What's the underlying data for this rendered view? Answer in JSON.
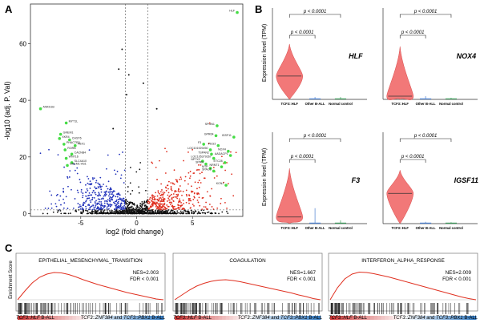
{
  "panel_letters": {
    "a": "A",
    "b": "B",
    "c": "C"
  },
  "colors": {
    "up": "#e03020",
    "down": "#2233bb",
    "ns": "#111111",
    "highlight": "#44dd44",
    "violin": "#f06060",
    "gsea_line": "#e03020",
    "rank_pos": "#d03030",
    "rank_neg": "#3070c0"
  },
  "chart_data": [
    {
      "id": "volcano",
      "type": "scatter",
      "title": "",
      "xlabel": "log2 (fold change)",
      "ylabel": "-log10 (adj. P. Val)",
      "xlim": [
        -9.5,
        9.5
      ],
      "ylim": [
        -1,
        74
      ],
      "xticks": [
        -5,
        0,
        5
      ],
      "yticks": [
        0,
        20,
        40,
        60
      ],
      "thresholds": {
        "x": [
          -1,
          1
        ],
        "y": 1.3
      },
      "highlight_points": [
        {
          "label": "HLF",
          "x": 9.0,
          "y": 71
        },
        {
          "label": "ANKS1B",
          "x": -8.6,
          "y": 37
        },
        {
          "label": "MYT1L",
          "x": -6.3,
          "y": 32
        },
        {
          "label": "GREM1",
          "x": -6.8,
          "y": 28
        },
        {
          "label": "XKR4",
          "x": -6.9,
          "y": 26.5
        },
        {
          "label": "CHST6",
          "x": -6.0,
          "y": 26
        },
        {
          "label": "PHACTR3",
          "x": -6.5,
          "y": 24.5
        },
        {
          "label": "PBX1",
          "x": -5.5,
          "y": 24
        },
        {
          "label": "RORB",
          "x": -6.4,
          "y": 22.5
        },
        {
          "label": "CACNB4",
          "x": -5.8,
          "y": 21
        },
        {
          "label": "WNT16",
          "x": -6.3,
          "y": 19.5
        },
        {
          "label": "SLC4A10",
          "x": -5.8,
          "y": 18
        },
        {
          "label": "GREM1-AS1",
          "x": -6.2,
          "y": 17
        },
        {
          "label": "SPON1",
          "x": 7.2,
          "y": 31
        },
        {
          "label": "GPR64",
          "x": 7.1,
          "y": 27.5
        },
        {
          "label": "IGSF11",
          "x": 8.7,
          "y": 27
        },
        {
          "label": "F3",
          "x": 6.0,
          "y": 24.5
        },
        {
          "label": "PEG3",
          "x": 7.3,
          "y": 24
        },
        {
          "label": "LOC101929250",
          "x": 6.6,
          "y": 22.5
        },
        {
          "label": "NOX4",
          "x": 8.2,
          "y": 22
        },
        {
          "label": "TSPAN2",
          "x": 6.7,
          "y": 21
        },
        {
          "label": "AADACP1",
          "x": 8.4,
          "y": 20.5
        },
        {
          "label": "LOC105379267",
          "x": 6.9,
          "y": 19.5
        },
        {
          "label": "NPTX2",
          "x": 5.9,
          "y": 18.5
        },
        {
          "label": "ETC28",
          "x": 7.9,
          "y": 18
        },
        {
          "label": "SPRN",
          "x": 6.2,
          "y": 17.5
        },
        {
          "label": "NRNT1",
          "x": 7.6,
          "y": 16.5
        },
        {
          "label": "MTP",
          "x": 6.6,
          "y": 16
        },
        {
          "label": "SPAG6",
          "x": 6.9,
          "y": 15
        },
        {
          "label": "KCNJ",
          "x": 8.0,
          "y": 10
        }
      ]
    },
    {
      "id": "violin-hlf",
      "type": "violin",
      "gene": "HLF",
      "ylabel": "Expression level (TPM)",
      "categories": [
        "TCF3::HLF",
        "Other B-ALL",
        "Normal control"
      ],
      "medians": [
        80,
        2,
        3
      ],
      "max": [
        190,
        8,
        8
      ],
      "ylim": [
        0,
        220
      ],
      "comparisons": [
        {
          "pair": [
            1,
            2
          ],
          "label": "p < 0.0001"
        },
        {
          "pair": [
            1,
            3
          ],
          "label": "p < 0.0001"
        }
      ]
    },
    {
      "id": "violin-nox4",
      "type": "violin",
      "gene": "NOX4",
      "ylabel": "",
      "categories": [
        "TCF3::HLF",
        "Other B-ALL",
        "Normal control"
      ],
      "medians": [
        2,
        0.3,
        0.2
      ],
      "max": [
        33,
        2,
        1
      ],
      "ylim": [
        0,
        40
      ],
      "comparisons": [
        {
          "pair": [
            1,
            2
          ],
          "label": "p < 0.0001"
        },
        {
          "pair": [
            1,
            3
          ],
          "label": "p < 0.0001"
        }
      ]
    },
    {
      "id": "violin-f3",
      "type": "violin",
      "gene": "F3",
      "ylabel": "Expression level (TPM)",
      "categories": [
        "TCF3::HLF",
        "Other B-ALL",
        "Normal control"
      ],
      "medians": [
        30,
        3,
        4
      ],
      "max": [
        250,
        70,
        15
      ],
      "ylim": [
        0,
        290
      ],
      "comparisons": [
        {
          "pair": [
            1,
            2
          ],
          "label": "p < 0.0001"
        },
        {
          "pair": [
            1,
            3
          ],
          "label": "p < 0.0001"
        }
      ]
    },
    {
      "id": "violin-igsf11",
      "type": "violin",
      "gene": "IGSF11",
      "ylabel": "",
      "categories": [
        "TCF3::HLF",
        "Other B-ALL",
        "Normal control"
      ],
      "medians": [
        17,
        0.2,
        0.2
      ],
      "max": [
        30,
        1,
        0.8
      ],
      "ylim": [
        0,
        36
      ],
      "comparisons": [
        {
          "pair": [
            1,
            2
          ],
          "label": "p < 0.0001"
        },
        {
          "pair": [
            1,
            3
          ],
          "label": "p < 0.0001"
        }
      ]
    },
    {
      "id": "gsea-emt",
      "type": "line",
      "title": "EPITHELIAL_MESENCHYMAL_TRANSITION",
      "ylabel": "Enrichment Score",
      "nes_label": "NES=2.003",
      "fdr_label": "FDR < 0.001",
      "x_left_label": "B-ALL",
      "x_left_prefix": "TCF3::HLF",
      "x_right_prefix": "TCF3::ZNF384",
      "x_right_mid": "and",
      "x_right_prefix2": "TCF3::PBX1",
      "x_right_suffix": "B-ALL",
      "running_es": [
        0,
        0.22,
        0.42,
        0.56,
        0.64,
        0.68,
        0.67,
        0.63,
        0.57,
        0.5,
        0.44,
        0.38,
        0.33,
        0.28,
        0.23,
        0.18,
        0.14,
        0.1,
        0.06,
        0.02,
        0
      ]
    },
    {
      "id": "gsea-coag",
      "type": "line",
      "title": "COAGULATION",
      "ylabel": "",
      "nes_label": "NES=1.667",
      "fdr_label": "FDR < 0.001",
      "x_left_label": "B-ALL",
      "x_left_prefix": "TCF3::HLF",
      "x_right_prefix": "TCF3::ZNF384",
      "x_right_mid": "and",
      "x_right_prefix2": "TCF3::PBX1",
      "x_right_suffix": "B-ALL",
      "running_es": [
        0,
        0.12,
        0.24,
        0.34,
        0.41,
        0.46,
        0.49,
        0.5,
        0.48,
        0.45,
        0.41,
        0.37,
        0.33,
        0.29,
        0.25,
        0.21,
        0.17,
        0.12,
        0.08,
        0.03,
        0
      ]
    },
    {
      "id": "gsea-ifna",
      "type": "line",
      "title": "INTERFERON_ALPHA_RESPONSE",
      "ylabel": "",
      "nes_label": "NES=2.009",
      "fdr_label": "FDR < 0.001",
      "x_left_label": "B-ALL",
      "x_left_prefix": "TCF3::HLF",
      "x_right_prefix": "TCF3::ZNF384",
      "x_right_mid": "and",
      "x_right_prefix2": "TCF3::PBX1",
      "x_right_suffix": "B-ALL",
      "running_es": [
        0,
        0.3,
        0.52,
        0.64,
        0.69,
        0.68,
        0.65,
        0.61,
        0.57,
        0.52,
        0.47,
        0.42,
        0.37,
        0.32,
        0.27,
        0.22,
        0.17,
        0.12,
        0.07,
        0.03,
        0
      ]
    }
  ]
}
